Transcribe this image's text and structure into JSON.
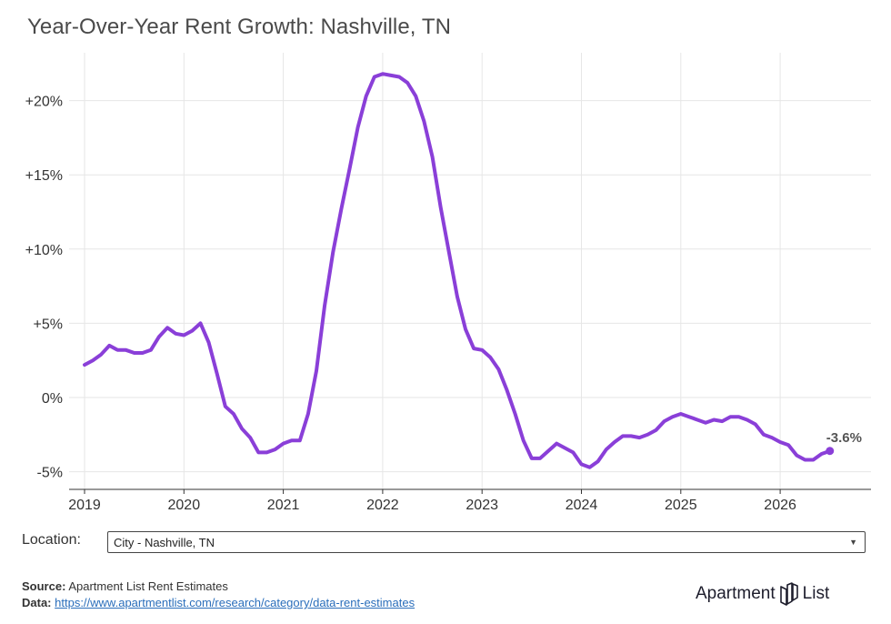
{
  "title": "Year-Over-Year Rent Growth: Nashville, TN",
  "chart_data": {
    "type": "line",
    "title": "Year-Over-Year Rent Growth: Nashville, TN",
    "xlabel": "",
    "ylabel": "",
    "xlim": [
      "2019-01",
      "2026-07"
    ],
    "ylim": [
      -6,
      24
    ],
    "x_ticks": [
      "2019",
      "2020",
      "2021",
      "2022",
      "2023",
      "2024",
      "2025",
      "2026"
    ],
    "y_ticks": [
      -5,
      0,
      5,
      10,
      15,
      20
    ],
    "y_tick_labels": [
      "-5%",
      "0%",
      "+5%",
      "+10%",
      "+15%",
      "+20%"
    ],
    "grid": true,
    "color": "#8a3fd8",
    "series": [
      {
        "x": [
          "2019-01",
          "2019-02",
          "2019-03",
          "2019-04",
          "2019-05",
          "2019-06",
          "2019-07",
          "2019-08",
          "2019-09",
          "2019-10",
          "2019-11",
          "2019-12",
          "2020-01",
          "2020-02",
          "2020-03",
          "2020-04",
          "2020-05",
          "2020-06",
          "2020-07",
          "2020-08",
          "2020-09",
          "2020-10",
          "2020-11",
          "2020-12",
          "2021-01",
          "2021-02",
          "2021-03",
          "2021-04",
          "2021-05",
          "2021-06",
          "2021-07",
          "2021-08",
          "2021-09",
          "2021-10",
          "2021-11",
          "2021-12",
          "2022-01",
          "2022-02",
          "2022-03",
          "2022-04",
          "2022-05",
          "2022-06",
          "2022-07",
          "2022-08",
          "2022-09",
          "2022-10",
          "2022-11",
          "2022-12",
          "2023-01",
          "2023-02",
          "2023-03",
          "2023-04",
          "2023-05",
          "2023-06",
          "2023-07",
          "2023-08",
          "2023-09",
          "2023-10",
          "2023-11",
          "2023-12",
          "2024-01",
          "2024-02",
          "2024-03",
          "2024-04",
          "2024-05",
          "2024-06",
          "2024-07",
          "2024-08",
          "2024-09",
          "2024-10",
          "2024-11",
          "2024-12",
          "2025-01",
          "2025-02",
          "2025-03",
          "2025-04",
          "2025-05",
          "2025-06",
          "2025-07",
          "2025-08",
          "2025-09",
          "2025-10",
          "2025-11",
          "2025-12",
          "2026-01",
          "2026-02",
          "2026-03",
          "2026-04",
          "2026-05",
          "2026-06",
          "2026-07"
        ],
        "values": [
          2.2,
          2.5,
          2.9,
          3.5,
          3.2,
          3.2,
          3.0,
          3.0,
          3.2,
          4.1,
          4.7,
          4.3,
          4.2,
          4.5,
          5.0,
          3.7,
          1.6,
          -0.6,
          -1.1,
          -2.1,
          -2.7,
          -3.7,
          -3.7,
          -3.5,
          -3.1,
          -2.9,
          -2.9,
          -1.1,
          1.8,
          6.2,
          9.8,
          12.7,
          15.4,
          18.2,
          20.3,
          21.6,
          21.8,
          21.7,
          21.6,
          21.2,
          20.3,
          18.6,
          16.2,
          12.8,
          9.8,
          6.8,
          4.6,
          3.3,
          3.2,
          2.7,
          1.9,
          0.5,
          -1.1,
          -2.9,
          -4.1,
          -4.1,
          -3.6,
          -3.1,
          -3.4,
          -3.7,
          -4.5,
          -4.7,
          -4.3,
          -3.5,
          -3.0,
          -2.6,
          -2.6,
          -2.7,
          -2.5,
          -2.2,
          -1.6,
          -1.3,
          -1.1,
          -1.3,
          -1.5,
          -1.7,
          -1.5,
          -1.6,
          -1.3,
          -1.3,
          -1.5,
          -1.8,
          -2.5,
          -2.7,
          -3.0,
          -3.2,
          -3.9,
          -4.2,
          -4.2,
          -3.8,
          -3.6
        ]
      }
    ],
    "end_label": "-3.6%"
  },
  "location": {
    "label": "Location:",
    "selected": "City - Nashville, TN"
  },
  "source": {
    "label": "Source:",
    "text": "Apartment List Rent Estimates"
  },
  "data": {
    "label": "Data:",
    "link": "https://www.apartmentlist.com/research/category/data-rent-estimates"
  },
  "logo": {
    "left": "Apartment",
    "right": "List"
  }
}
